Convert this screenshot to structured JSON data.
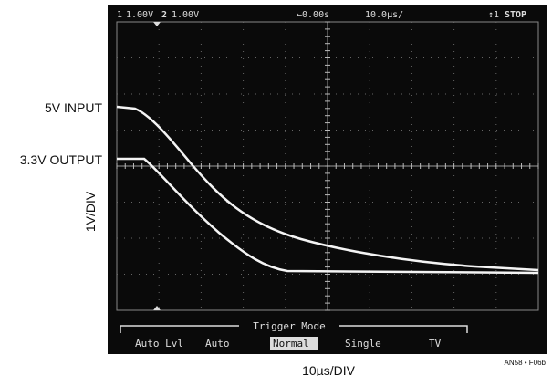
{
  "screen": {
    "channel1": "1",
    "channel1_scale": "1.00V",
    "channel2": "2",
    "channel2_scale": "1.00V",
    "time_offset": "←0.00s",
    "time_scale": "10.0µs/",
    "trigger": "↕1",
    "status": "STOP"
  },
  "menu": {
    "title": "Trigger Mode",
    "items": [
      "Auto Lvl",
      "Auto",
      "Normal",
      "Single",
      "TV"
    ]
  },
  "labels": {
    "input": "5V INPUT",
    "output": "3.3V OUTPUT",
    "y_scale": "1V/DIV",
    "x_scale": "10µs/DIV",
    "figure_id": "AN58 • F06b"
  }
}
